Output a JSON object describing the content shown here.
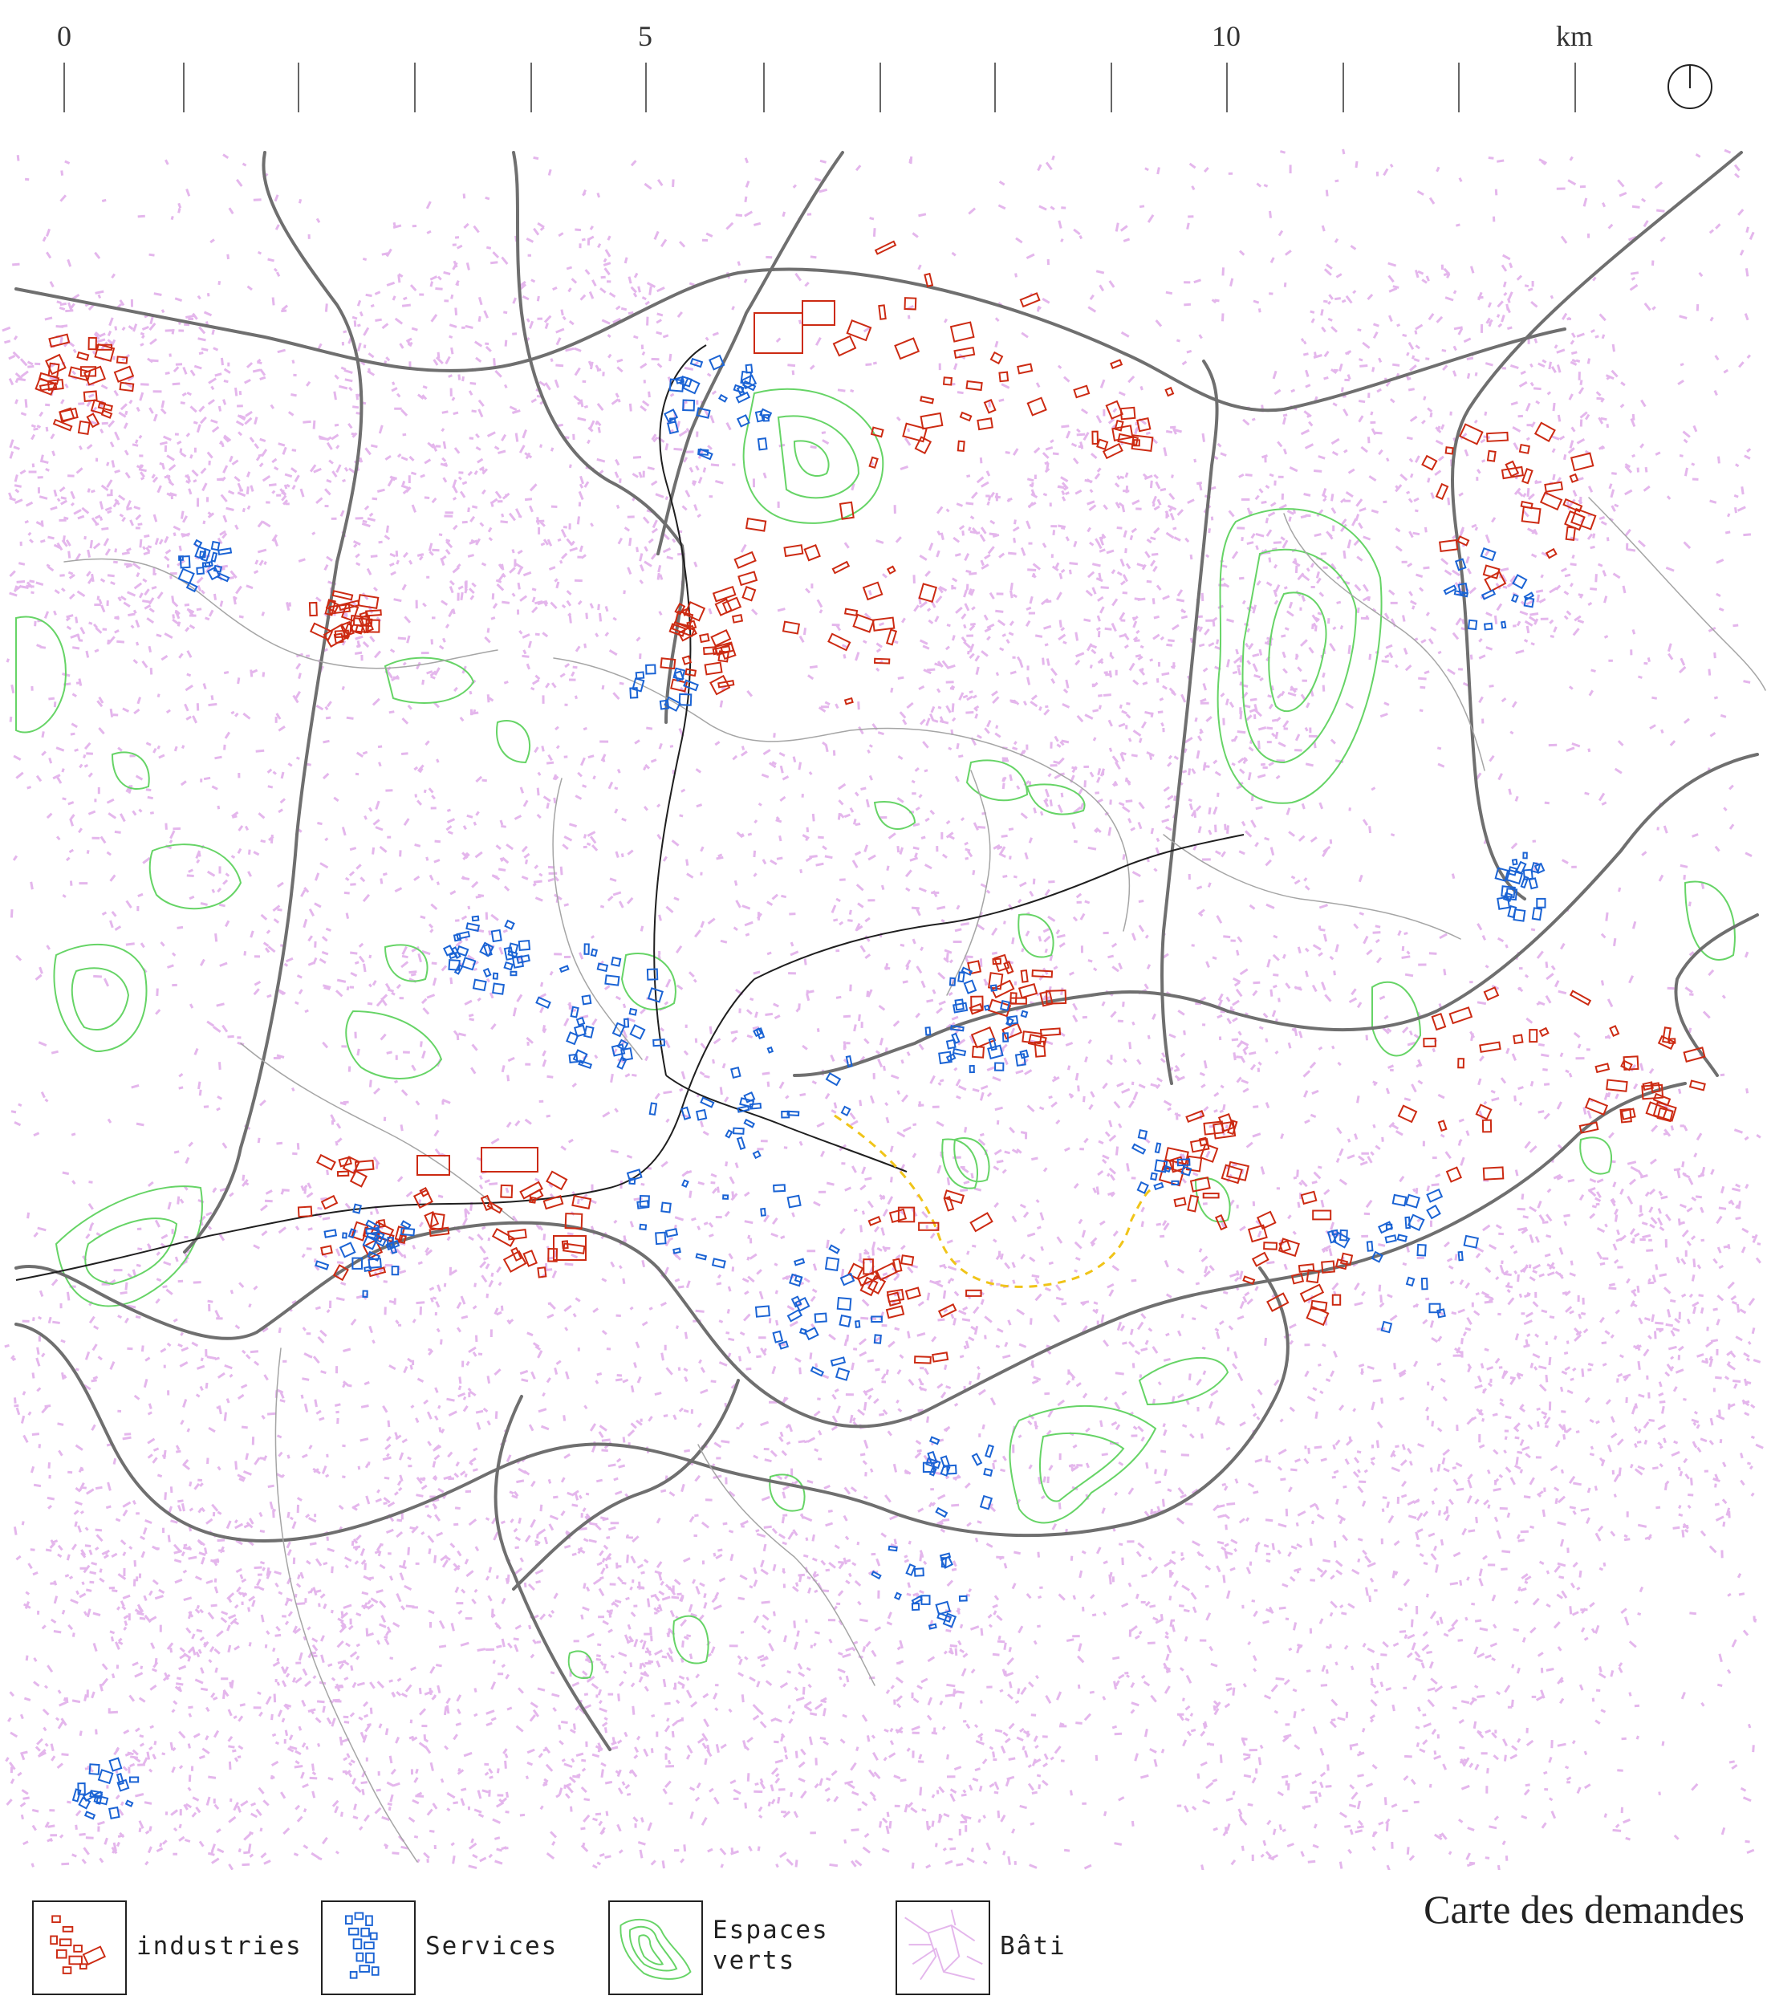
{
  "scale": {
    "labels": [
      {
        "text": "0"
      },
      {
        "text": "5"
      },
      {
        "text": "10"
      },
      {
        "text": "km"
      }
    ]
  },
  "map": {
    "title": "Carte des demandes",
    "layer_colors": {
      "industries": "#cc2a12",
      "services": "#1a63d4",
      "espaces_verts": "#66d466",
      "bati": "#e4b6ec",
      "roads": "#6f6f6f",
      "rail": "#1f1f1f",
      "tram": "#f0c419"
    }
  },
  "legend": {
    "items": [
      {
        "label": "industries",
        "icon": "industries-swatch"
      },
      {
        "label": "Services",
        "icon": "services-swatch"
      },
      {
        "label": "Espaces\nverts",
        "icon": "green-space-swatch"
      },
      {
        "label": "Bâti",
        "icon": "built-area-swatch"
      }
    ]
  }
}
